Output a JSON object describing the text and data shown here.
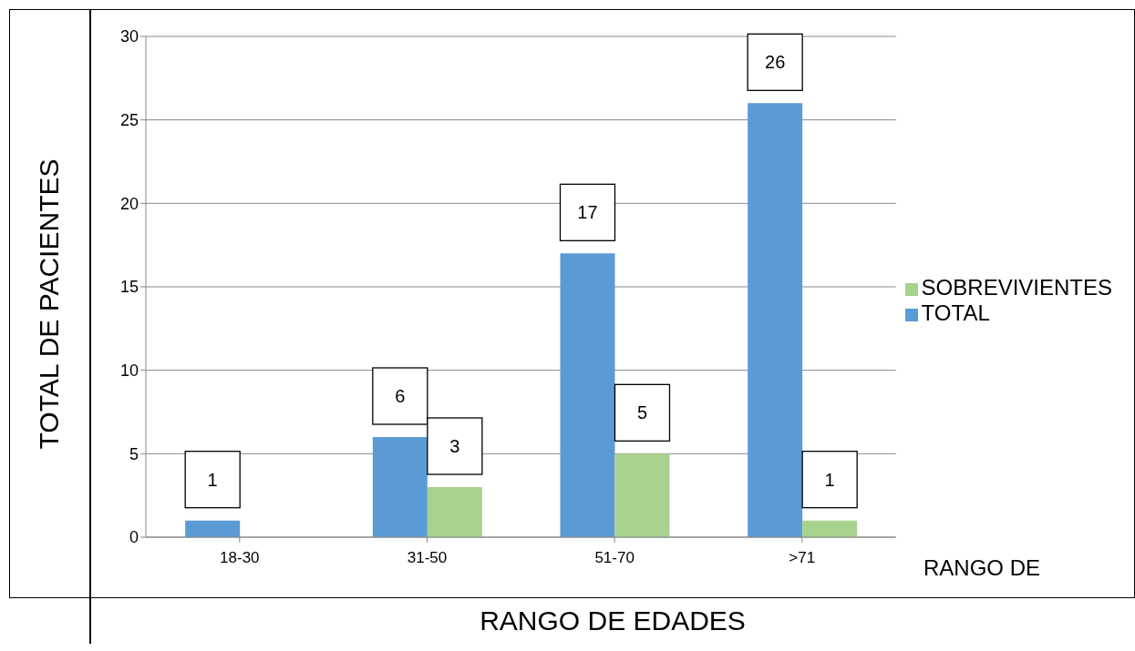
{
  "chart_data": {
    "type": "bar",
    "xlabel": "RANGO DE EDADES",
    "ylabel": "TOTAL DE PACIENTES",
    "annotations": [
      "RANGO DE"
    ],
    "categories": [
      "18-30",
      "31-50",
      "51-70",
      ">71"
    ],
    "series": [
      {
        "name": "TOTAL",
        "color": "#5b9bd5",
        "values": [
          1,
          6,
          17,
          26
        ]
      },
      {
        "name": "SOBREVIVIENTES",
        "color": "#a9d18e",
        "values": [
          null,
          3,
          5,
          1
        ]
      }
    ],
    "ylim": [
      0,
      30
    ],
    "yticks": [
      0,
      5,
      10,
      15,
      20,
      25,
      30
    ],
    "grid": "y",
    "legend": "right",
    "data_labels": true
  }
}
